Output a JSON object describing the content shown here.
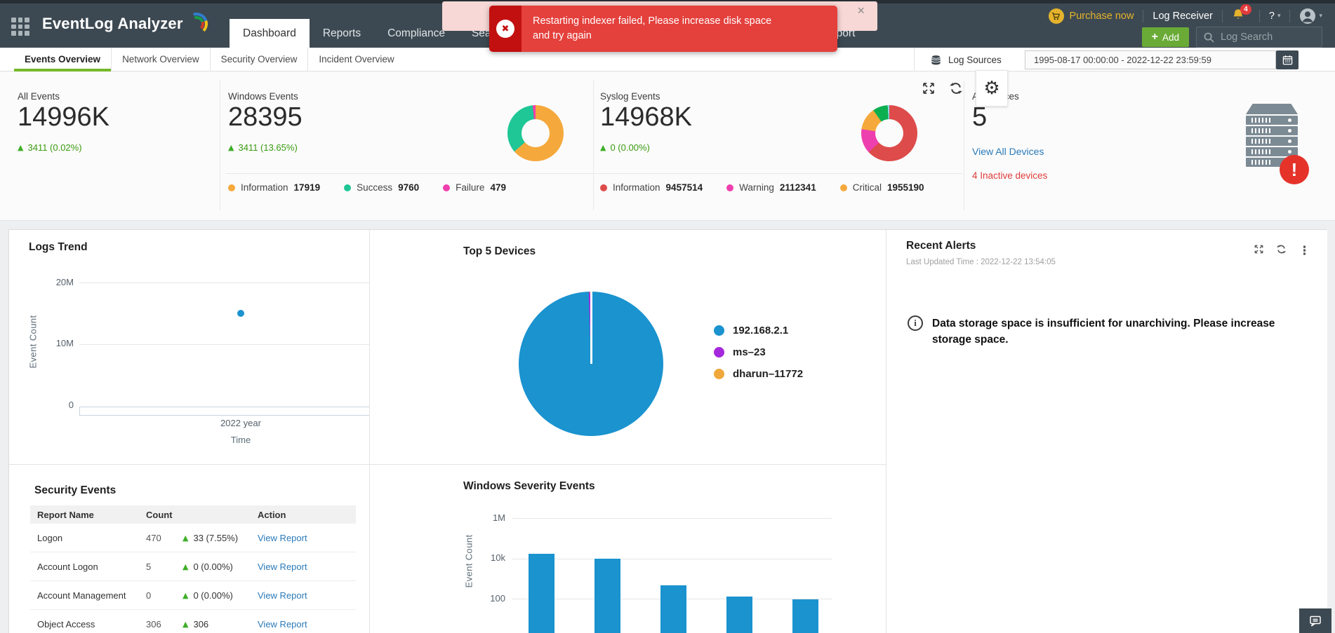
{
  "app": {
    "logo_text": "EventLog Analyzer",
    "nav_tabs": [
      "Dashboard",
      "Reports",
      "Compliance",
      "Search",
      "Support"
    ],
    "active_tab": "Dashboard",
    "purchase_label": "Purchase now",
    "log_receiver_label": "Log Receiver",
    "notification_count": "4",
    "help_label": "?",
    "add_plus": "+",
    "add_label": "Add",
    "log_search_label": "Log Search"
  },
  "toast": {
    "message": "Restarting indexer failed, Please increase disk space and try again",
    "close_label": "×"
  },
  "subnav": {
    "tabs": [
      "Events Overview",
      "Network Overview",
      "Security Overview",
      "Incident Overview"
    ],
    "active": "Events Overview",
    "log_sources_label": "Log Sources",
    "date_range": "1995-08-17 00:00:00 - 2022-12-22 23:59:59"
  },
  "stats": {
    "all_events": {
      "label": "All Events",
      "value": "14996K",
      "delta": "3411 (0.02%)"
    },
    "windows_events": {
      "label": "Windows Events",
      "value": "28395",
      "delta": "3411 (13.65%)"
    },
    "syslog_events": {
      "label": "Syslog Events",
      "value": "14968K",
      "delta": "0 (0.00%)"
    },
    "all_devices": {
      "label": "All Devices",
      "value": "5",
      "link_label": "View All Devices",
      "inactive_label": "4 Inactive devices",
      "badge": "!"
    }
  },
  "panels": {
    "recent_alerts": {
      "title": "Recent Alerts",
      "updated": "Last Updated Time : 2022-12-22 13:54:05",
      "message": "Data storage space is insufficient for unarchiving. Please increase storage space."
    },
    "security_events": {
      "title": "Security Events",
      "columns": [
        "Report Name",
        "Count",
        "Action"
      ],
      "rows": [
        {
          "name": "Logon",
          "count": "470",
          "delta": "33 (7.55%)",
          "action": "View Report"
        },
        {
          "name": "Account Logon",
          "count": "5",
          "delta": "0 (0.00%)",
          "action": "View Report"
        },
        {
          "name": "Account Management",
          "count": "0",
          "delta": "0 (0.00%)",
          "action": "View Report"
        },
        {
          "name": "Object Access",
          "count": "306",
          "delta": "306",
          "action": "View Report"
        }
      ]
    }
  },
  "chart_data": [
    {
      "id": "logs_trend",
      "type": "scatter",
      "title": "Logs Trend",
      "xlabel": "Time",
      "ylabel": "Event Count",
      "x": [
        "2022 year"
      ],
      "values": [
        14970000
      ],
      "ylim": [
        0,
        20000000
      ],
      "grid": true,
      "yticks": [
        {
          "label": "20M",
          "value": 20000000
        },
        {
          "label": "10M",
          "value": 10000000
        },
        {
          "label": "0",
          "value": 0
        }
      ],
      "point_color": "#1a93cf"
    },
    {
      "id": "top_5_devices",
      "type": "pie",
      "title": "Top 5 Devices",
      "legend_position": "right",
      "slices": [
        {
          "label": "192.168.2.1",
          "value": 99.5,
          "color": "#1a93cf"
        },
        {
          "label": "ms–23",
          "value": 0.3,
          "color": "#a428dc"
        },
        {
          "label": "dharun–11772",
          "value": 0.2,
          "color": "#f0a83c"
        }
      ]
    },
    {
      "id": "windows_events_donut",
      "type": "pie",
      "slices": [
        {
          "label": "Information",
          "value": 17919,
          "color": "#f5a93c"
        },
        {
          "label": "Success",
          "value": 9760,
          "color": "#1ec795"
        },
        {
          "label": "Failure",
          "value": 479,
          "color": "#ee3fae"
        }
      ]
    },
    {
      "id": "syslog_events_donut",
      "type": "pie",
      "slices": [
        {
          "label": "Information",
          "value": 9457514,
          "color": "#dd4b4a"
        },
        {
          "label": "Warning",
          "value": 2112341,
          "color": "#ee3fae"
        },
        {
          "label": "Critical",
          "value": 1955190,
          "color": "#f5a93c"
        },
        {
          "label": "",
          "value": 1298000,
          "color": "#0caf50"
        },
        {
          "label": "",
          "value": 145000,
          "color": "#8fd4e8"
        }
      ]
    },
    {
      "id": "windows_severity_events",
      "type": "bar",
      "title": "Windows Severity Events",
      "ylabel": "Event Count",
      "yscale": "log",
      "categories": [
        "",
        "",
        "",
        "",
        ""
      ],
      "values": [
        17000,
        10000,
        460,
        130,
        90
      ],
      "yticks": [
        {
          "label": "1M",
          "value": 1000000
        },
        {
          "label": "10k",
          "value": 10000
        },
        {
          "label": "100",
          "value": 100
        }
      ],
      "bar_color": "#1a93cf"
    }
  ]
}
